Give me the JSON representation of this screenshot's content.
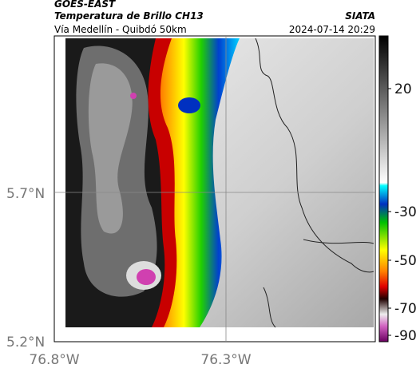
{
  "header": {
    "source": "GOES-EAST",
    "title": "Temperatura de Brillo CH13",
    "subtitle": "Vía Medellín - Quibdó 50km",
    "brand": "SIATA",
    "datetime": "2024-07-14 20:29"
  },
  "lat_ticks": [
    "5.7°N",
    "5.2°N"
  ],
  "lon_ticks": [
    "76.8°W",
    "76.3°W"
  ],
  "colorbar_ticks": [
    "20",
    "-30",
    "-50",
    "-70",
    "-90"
  ]
}
